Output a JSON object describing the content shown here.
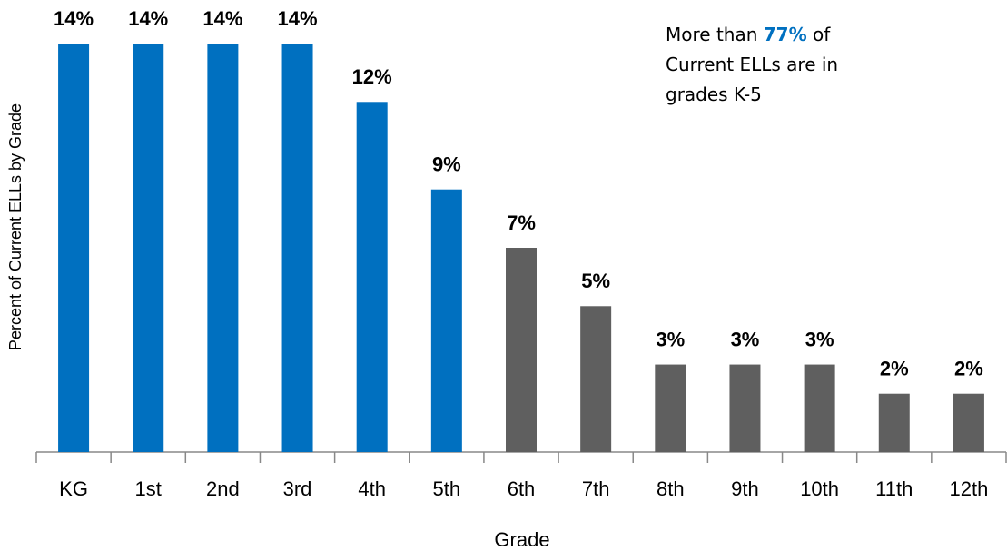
{
  "chart_data": {
    "type": "bar",
    "y_label": "Percent of Current ELLs by Grade",
    "x_label": "Grade",
    "categories": [
      "KG",
      "1st",
      "2nd",
      "3rd",
      "4th",
      "5th",
      "6th",
      "7th",
      "8th",
      "9th",
      "10th",
      "11th",
      "12th"
    ],
    "values": [
      14,
      14,
      14,
      14,
      12,
      9,
      7,
      5,
      3,
      3,
      3,
      2,
      2
    ],
    "value_labels": [
      "14%",
      "14%",
      "14%",
      "14%",
      "12%",
      "9%",
      "7%",
      "5%",
      "3%",
      "3%",
      "3%",
      "2%",
      "2%"
    ],
    "colors": [
      "#0070c0",
      "#0070c0",
      "#0070c0",
      "#0070c0",
      "#0070c0",
      "#0070c0",
      "#5f5f5f",
      "#5f5f5f",
      "#5f5f5f",
      "#5f5f5f",
      "#5f5f5f",
      "#5f5f5f",
      "#5f5f5f"
    ],
    "annotation": {
      "prefix": "More than",
      "highlight": "77%",
      "suffix": "of Current ELLs are in grades K-5",
      "highlight_color": "#0070c0"
    }
  }
}
